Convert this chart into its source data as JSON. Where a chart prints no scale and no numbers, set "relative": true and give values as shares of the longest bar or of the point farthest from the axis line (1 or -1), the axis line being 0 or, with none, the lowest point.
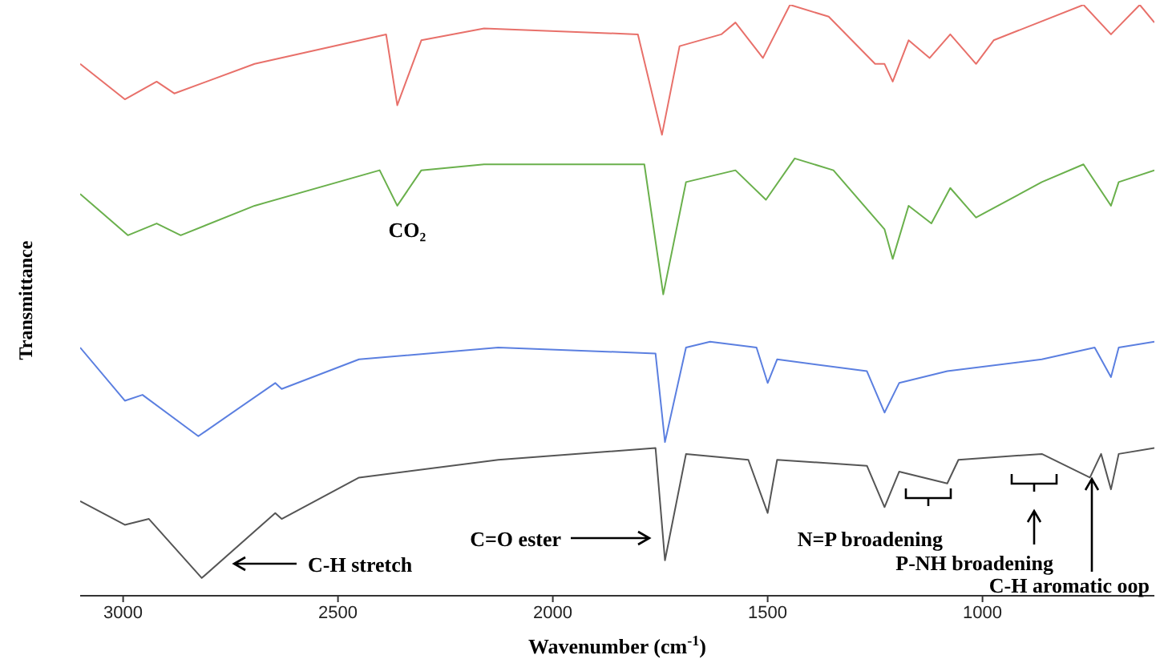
{
  "chart_data": {
    "type": "line",
    "relative": true,
    "xlabel": "Wavenumber (cm$^{-1}$)",
    "ylabel": "Transmittance",
    "xlim": [
      3100,
      600
    ],
    "xticks": [
      3000,
      2500,
      2000,
      1500,
      1000
    ],
    "grid": false,
    "legend": false,
    "marker": "none",
    "line_style": "solid",
    "tick_labels": "x",
    "series": [
      {
        "color": "#e8706a",
        "x": [
          3100,
          2996,
          2922,
          2881,
          2694,
          2388,
          2362,
          2306,
          2160,
          1802,
          1746,
          1705,
          1608,
          1575,
          1511,
          1448,
          1358,
          1250,
          1228,
          1209,
          1172,
          1123,
          1075,
          1015,
          974,
          765,
          701,
          634,
          600
        ],
        "values": [
          0.9,
          0.84,
          0.87,
          0.85,
          0.9,
          0.95,
          0.83,
          0.94,
          0.96,
          0.95,
          0.78,
          0.93,
          0.95,
          0.97,
          0.91,
          1.0,
          0.98,
          0.9,
          0.9,
          0.87,
          0.94,
          0.91,
          0.95,
          0.9,
          0.94,
          1.0,
          0.95,
          1.0,
          0.97
        ]
      },
      {
        "color": "#6ab04c",
        "x": [
          3100,
          2989,
          2922,
          2866,
          2694,
          2403,
          2362,
          2306,
          2160,
          1787,
          1743,
          1690,
          1575,
          1504,
          1437,
          1347,
          1228,
          1209,
          1172,
          1119,
          1075,
          1015,
          862,
          765,
          701,
          683,
          600
        ],
        "values": [
          0.68,
          0.61,
          0.63,
          0.61,
          0.66,
          0.72,
          0.66,
          0.72,
          0.73,
          0.73,
          0.51,
          0.7,
          0.72,
          0.67,
          0.74,
          0.72,
          0.62,
          0.57,
          0.66,
          0.63,
          0.69,
          0.64,
          0.7,
          0.73,
          0.66,
          0.7,
          0.72
        ]
      },
      {
        "color": "#5b7fe0",
        "x": [
          3100,
          2996,
          2955,
          2825,
          2646,
          2631,
          2451,
          2127,
          1761,
          1739,
          1690,
          1634,
          1526,
          1500,
          1478,
          1269,
          1228,
          1194,
          1082,
          862,
          739,
          701,
          683,
          600
        ],
        "values": [
          0.42,
          0.33,
          0.34,
          0.27,
          0.36,
          0.35,
          0.4,
          0.42,
          0.41,
          0.26,
          0.42,
          0.43,
          0.42,
          0.36,
          0.4,
          0.38,
          0.31,
          0.36,
          0.38,
          0.4,
          0.42,
          0.37,
          0.42,
          0.43
        ]
      },
      {
        "color": "#555555",
        "x": [
          3100,
          2996,
          2940,
          2817,
          2646,
          2631,
          2451,
          2127,
          1761,
          1739,
          1690,
          1545,
          1500,
          1478,
          1269,
          1228,
          1194,
          1082,
          1056,
          862,
          750,
          724,
          701,
          683,
          600
        ],
        "values": [
          0.16,
          0.12,
          0.13,
          0.03,
          0.14,
          0.13,
          0.2,
          0.23,
          0.25,
          0.06,
          0.24,
          0.23,
          0.14,
          0.23,
          0.22,
          0.15,
          0.21,
          0.19,
          0.23,
          0.24,
          0.2,
          0.24,
          0.18,
          0.24,
          0.25
        ]
      }
    ],
    "annotations": [
      "CO₂",
      "C-H stretch",
      "C=O ester",
      "N=P broadening",
      "P-NH broadening",
      "C-H aromatic oop"
    ]
  }
}
